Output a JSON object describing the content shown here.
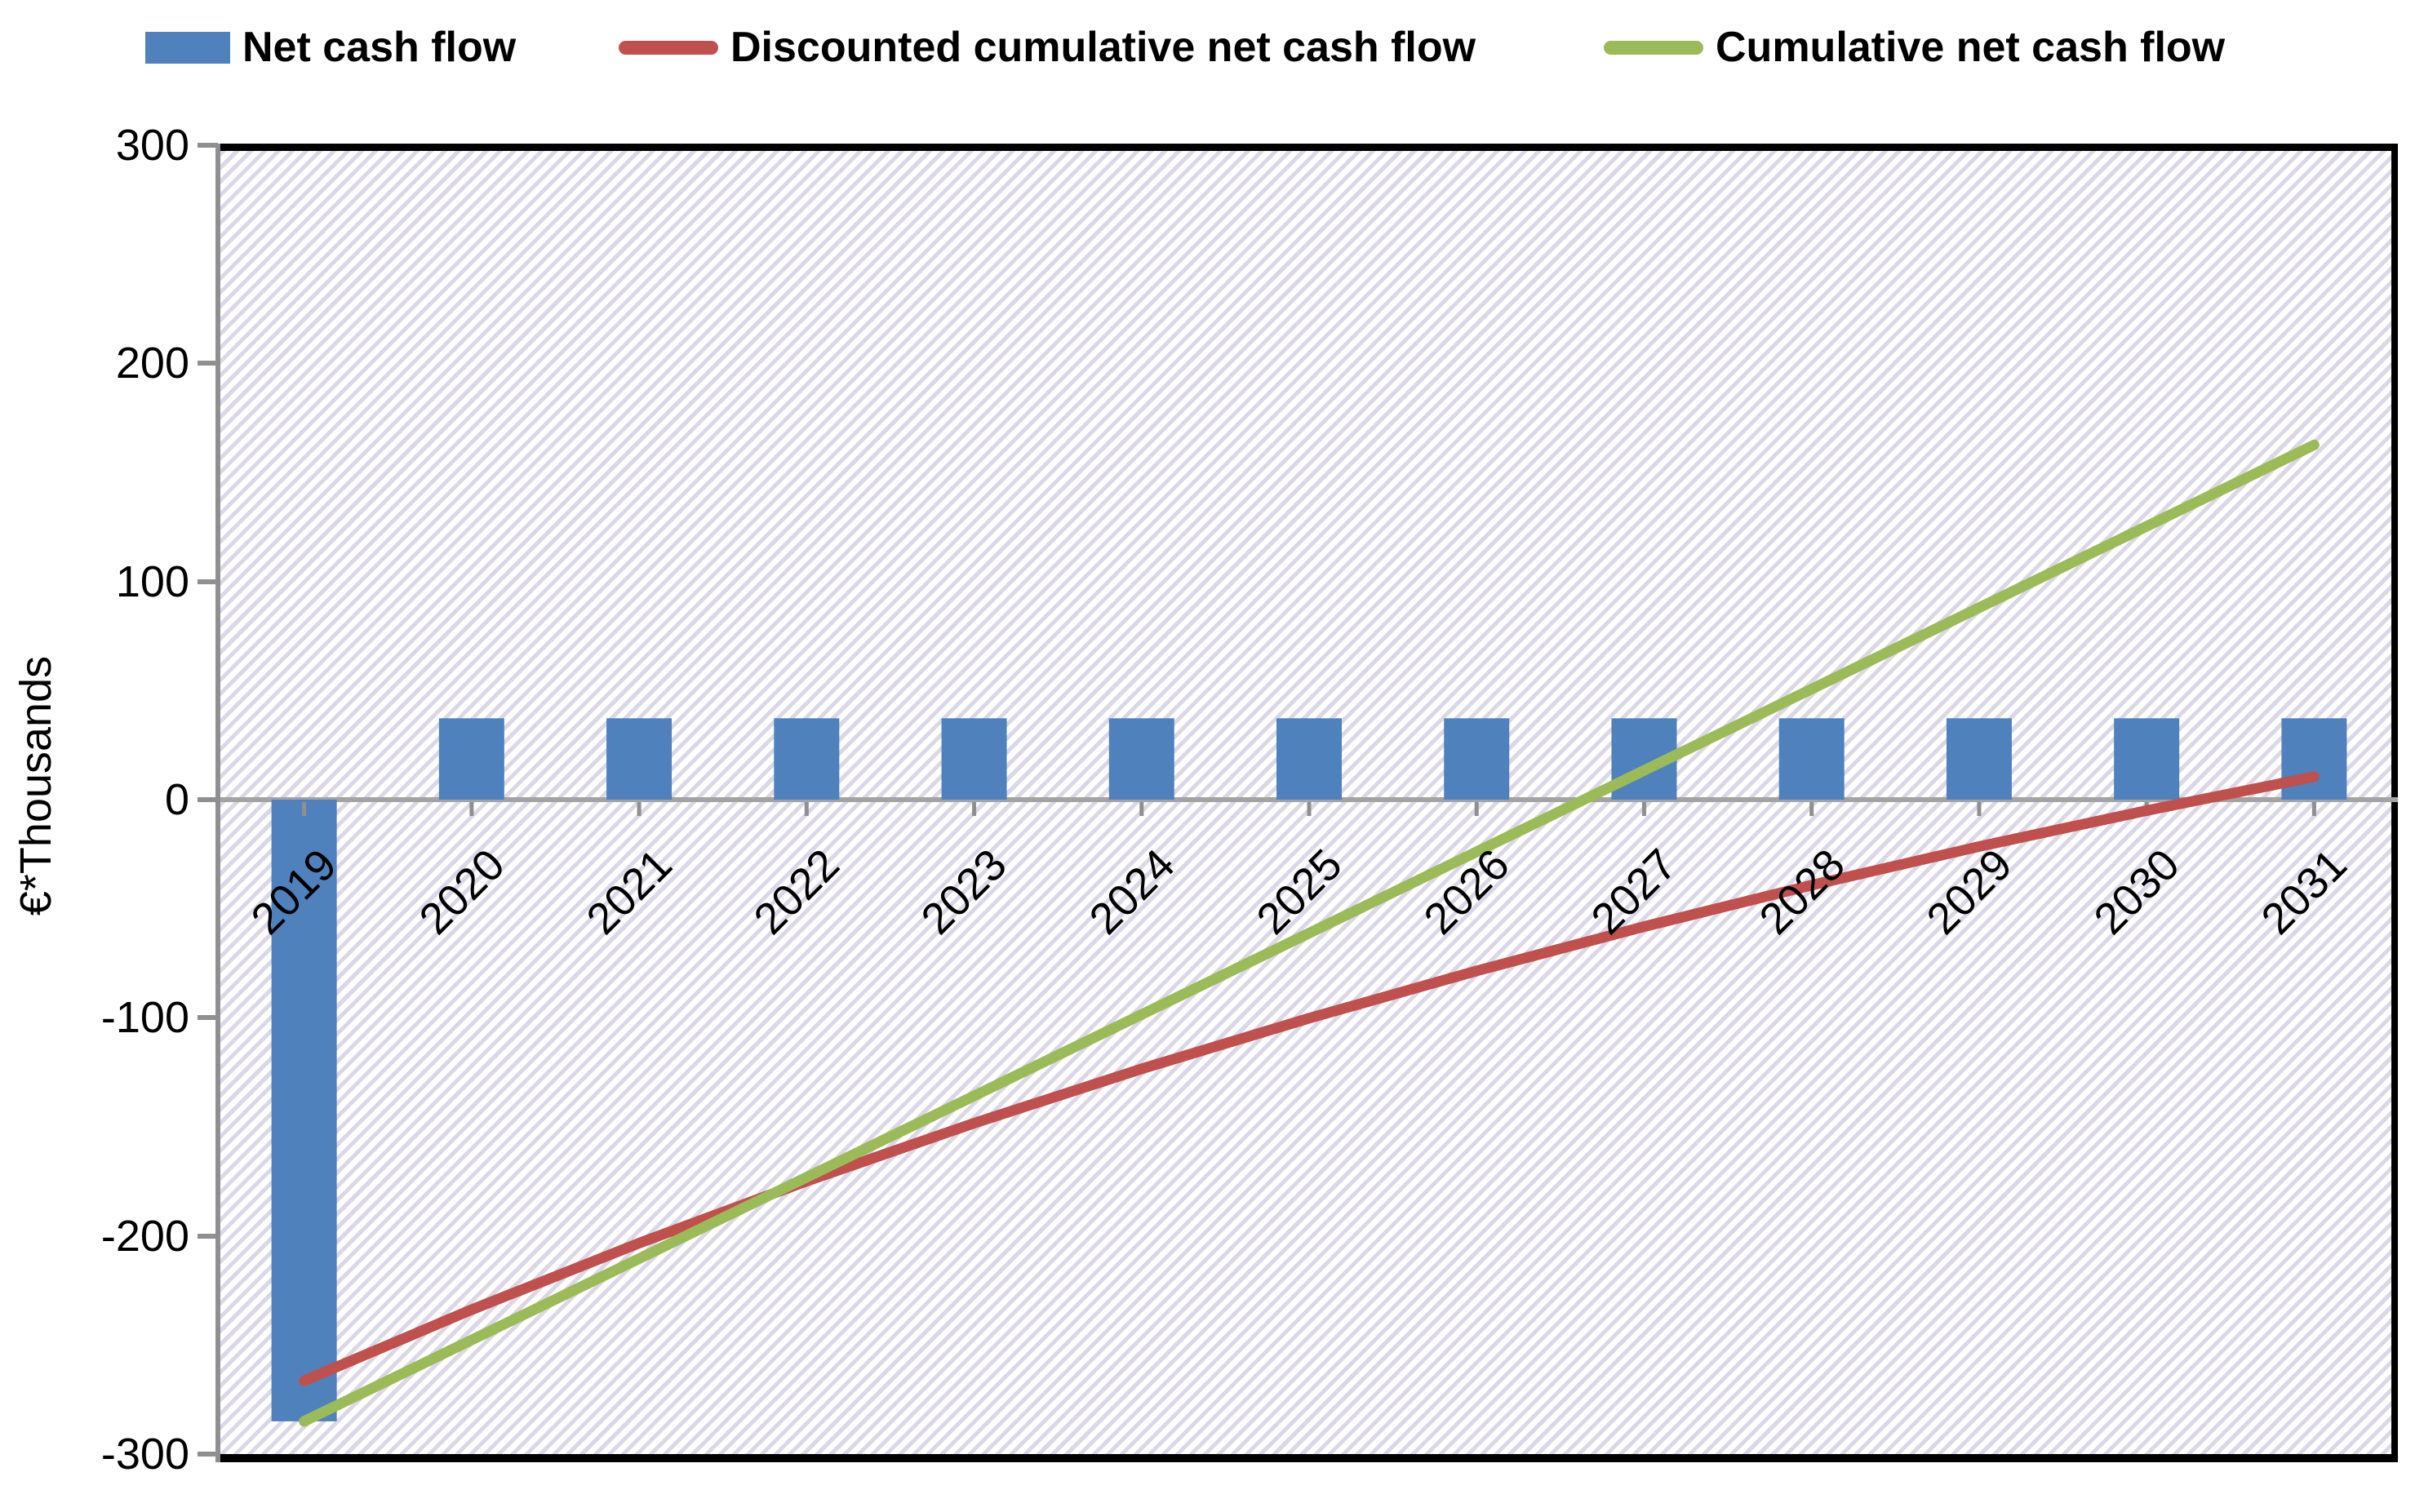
{
  "chart_data": {
    "type": "bar+line",
    "title": "",
    "xlabel": "",
    "ylabel": "€*Thousands",
    "categories": [
      "2019",
      "2020",
      "2021",
      "2022",
      "2023",
      "2024",
      "2025",
      "2026",
      "2027",
      "2028",
      "2029",
      "2030",
      "2031"
    ],
    "series": [
      {
        "name": "Net cash flow",
        "type": "bar",
        "color": "#4f81bd",
        "values": [
          -285,
          37.3,
          37.3,
          37.3,
          37.3,
          37.3,
          37.3,
          37.3,
          37.3,
          37.3,
          37.3,
          37.3,
          37.3
        ]
      },
      {
        "name": "Discounted cumulative net cash flow",
        "type": "line",
        "color": "#c0504d",
        "values": [
          -266.4,
          -233.8,
          -203.3,
          -174.9,
          -148.3,
          -123.4,
          -100.2,
          -78.5,
          -58.2,
          -39.2,
          -21.5,
          -5.0,
          10.5
        ]
      },
      {
        "name": "Cumulative net cash flow",
        "type": "line",
        "color": "#9bbb59",
        "values": [
          -285.0,
          -247.7,
          -210.4,
          -173.1,
          -135.8,
          -98.5,
          -61.2,
          -23.9,
          13.4,
          50.7,
          88.0,
          125.3,
          162.6
        ]
      }
    ],
    "ylim": [
      -300,
      300
    ],
    "y_ticks": [
      300,
      200,
      100,
      0,
      -100,
      -200,
      -300
    ],
    "grid": "zero-line-only",
    "legend_position": "top",
    "plot_background": "diagonal-hatch",
    "x_label_rotation_deg": -45
  },
  "colors": {
    "bar_blue": "#4f81bd",
    "line_red": "#c0504d",
    "line_green": "#9bbb59",
    "axis_gray": "#8f8f8f",
    "zero_line_gray": "#a3a3a3",
    "plot_border_black": "#000000",
    "hatch_lavender": "#dbd7e7"
  }
}
